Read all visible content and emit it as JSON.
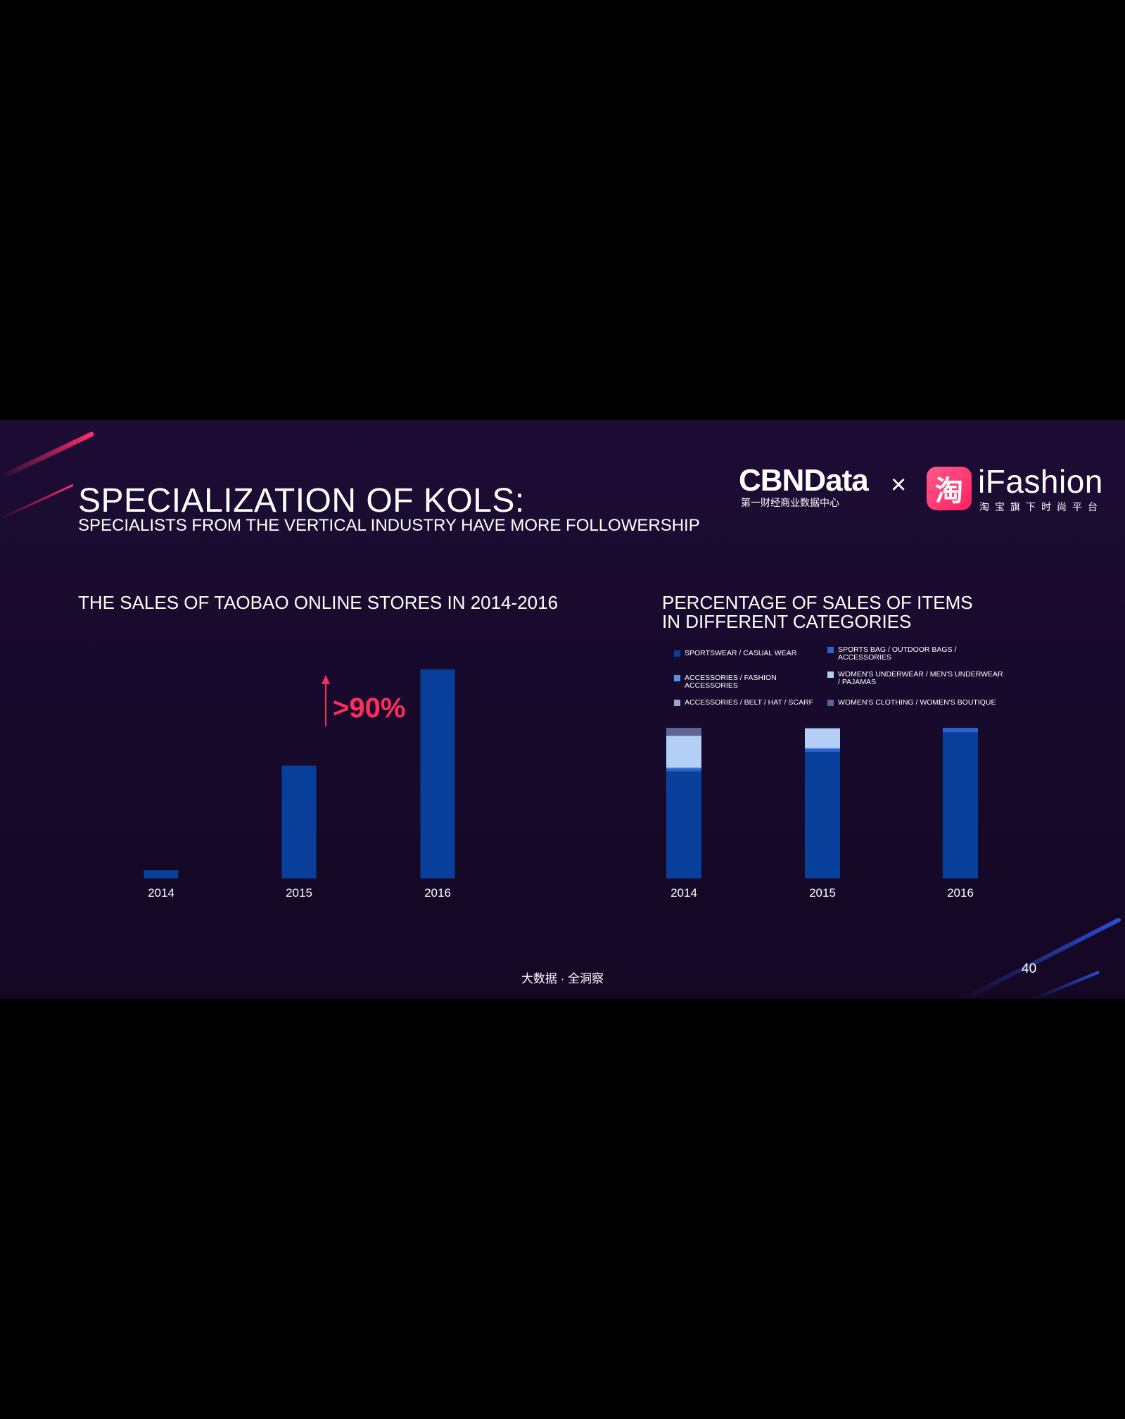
{
  "slide": {
    "title": "SPECIALIZATION OF KOLS:",
    "subtitle": "SPECIALISTS FROM THE VERTICAL INDUSTRY HAVE MORE FOLLOWERSHIP",
    "footer": "大数据 · 全洞察",
    "page_number": "40"
  },
  "logos": {
    "cbn": "CBNData",
    "cbn_sub": "第一财经商业数据中心",
    "times": "×",
    "tao_icon": "淘",
    "ifashion": "iFashion",
    "ifashion_sub": "淘宝旗下时尚平台"
  },
  "chart_data": [
    {
      "type": "bar",
      "title": "THE SALES OF TAOBAO ONLINE STORES IN 2014-2016",
      "categories": [
        "2014",
        "2015",
        "2016"
      ],
      "values": [
        4,
        54,
        100
      ],
      "ylim": [
        0,
        100
      ],
      "annotation": ">90%",
      "color": "#083f9a"
    },
    {
      "type": "bar",
      "stacked": true,
      "title_lines": [
        "PERCENTAGE OF SALES OF ITEMS",
        "IN DIFFERENT CATEGORIES"
      ],
      "categories": [
        "2014",
        "2015",
        "2016"
      ],
      "ylim": [
        0,
        100
      ],
      "series": [
        {
          "name": "SPORTSWEAR / CASUAL WEAR",
          "color": "#083f9a",
          "values": [
            71,
            84,
            97
          ]
        },
        {
          "name": "SPORTS BAG / OUTDOOR BAGS / ACCESSORIES",
          "color": "#2a63cf",
          "values": [
            2,
            2,
            3
          ]
        },
        {
          "name": "ACCESSORIES / FASHION ACCESSORIES",
          "color": "#5f8fe3",
          "values": [
            0.5,
            0.5,
            0
          ]
        },
        {
          "name": "WOMEN'S UNDERWEAR / MEN'S UNDERWEAR / PAJAMAS",
          "color": "#b4cff5",
          "values": [
            21,
            13,
            0
          ]
        },
        {
          "name": "ACCESSORIES / BELT / HAT / SCARF",
          "color": "#9ba6cf",
          "values": [
            0.5,
            0,
            0
          ]
        },
        {
          "name": "WOMEN'S CLOTHING / WOMEN'S BOUTIQUE",
          "color": "#5d6592",
          "values": [
            5,
            0.5,
            0
          ]
        }
      ]
    }
  ]
}
